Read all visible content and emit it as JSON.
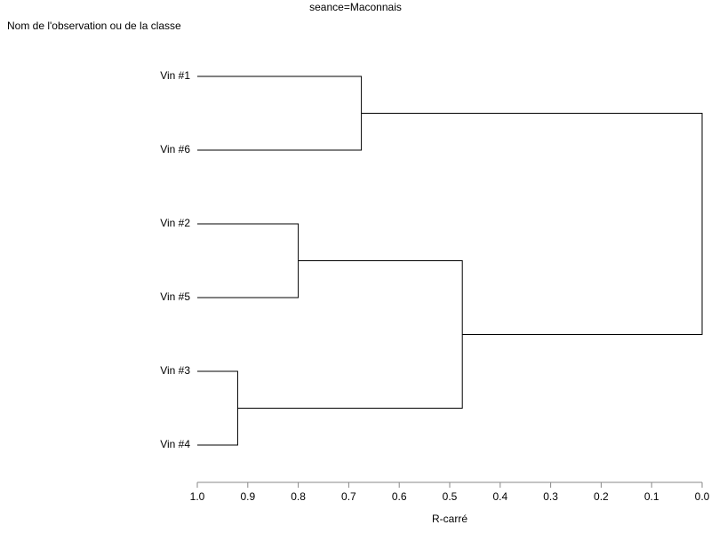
{
  "chart_data": {
    "type": "dendrogram",
    "title": "seance=Maconnais",
    "y_label": "Nom de l'observation ou de la classe",
    "x_label": "R-carré",
    "leaves": [
      "Vin #1",
      "Vin #6",
      "Vin #2",
      "Vin #5",
      "Vin #3",
      "Vin #4"
    ],
    "merges": [
      {
        "left": 0,
        "right": 1,
        "value": 0.675
      },
      {
        "left": 2,
        "right": 3,
        "value": 0.8
      },
      {
        "left": 4,
        "right": 5,
        "value": 0.92
      },
      {
        "left": 7,
        "right": 8,
        "value": 0.475
      },
      {
        "left": 6,
        "right": 9,
        "value": 0
      }
    ],
    "xlim": [
      1,
      0
    ],
    "xticks": [
      {
        "value": 1,
        "label": "1.0"
      },
      0.9,
      0.8,
      0.7,
      0.6,
      0.5,
      0.4,
      0.3,
      0.2,
      0.1,
      {
        "value": 0,
        "label": "0.0"
      }
    ],
    "color": "#000000"
  }
}
